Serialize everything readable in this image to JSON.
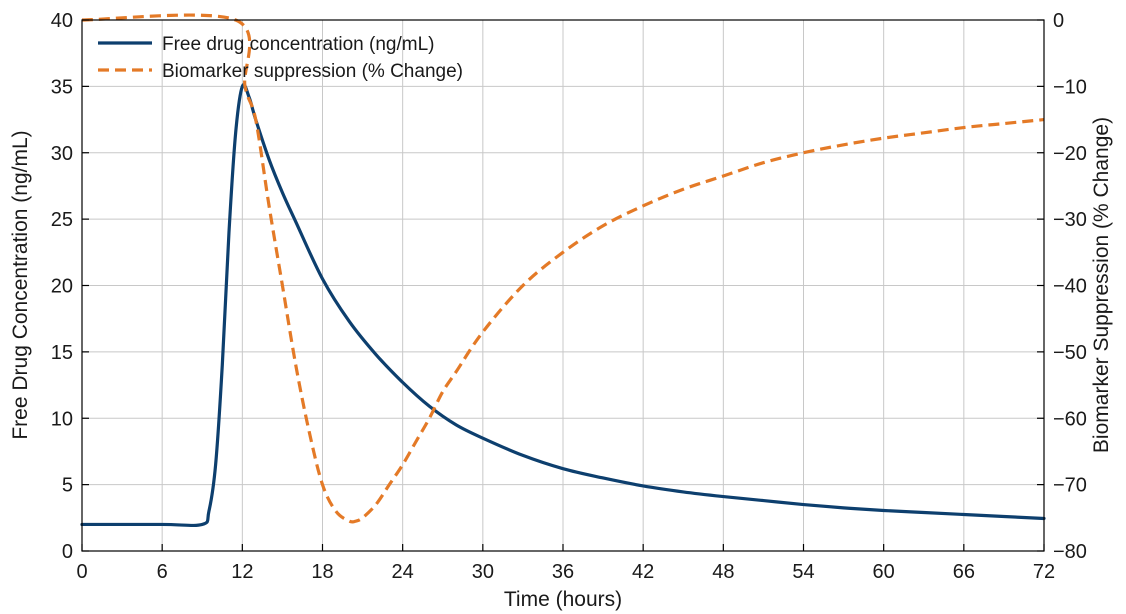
{
  "chart_data": {
    "type": "line",
    "xlabel": "Time (hours)",
    "ylabel_left": "Free Drug Concentration (ng/mL)",
    "ylabel_right": "Biomarker Suppression (% Change)",
    "xlim": [
      0,
      72
    ],
    "ylim_left": [
      0,
      40
    ],
    "ylim_right": [
      -80,
      0
    ],
    "x_ticks": [
      "0",
      "6",
      "12",
      "18",
      "24",
      "30",
      "36",
      "42",
      "48",
      "54",
      "60",
      "66",
      "72"
    ],
    "y_left_ticks": [
      "0",
      "5",
      "10",
      "15",
      "20",
      "25",
      "30",
      "35",
      "40"
    ],
    "y_right_ticks": [
      "-80",
      "-70",
      "-60",
      "-50",
      "-40",
      "-30",
      "-20",
      "-10",
      "0"
    ],
    "grid": true,
    "legend_position": "top-left",
    "series": [
      {
        "name": "Free drug concentration (ng/mL)",
        "axis": "left",
        "color": "#0d3f6e",
        "style": "solid",
        "x": [
          0,
          6,
          9,
          9.5,
          10,
          10.5,
          11,
          11.5,
          12,
          12.5,
          13,
          14,
          15,
          16,
          18,
          20,
          22,
          24,
          26,
          28,
          30,
          33,
          36,
          39,
          42,
          45,
          48,
          51,
          54,
          57,
          60,
          63,
          66,
          69,
          72
        ],
        "values": [
          2,
          2,
          2,
          3,
          6.5,
          14,
          24,
          31.5,
          35,
          34.2,
          32.5,
          29.5,
          27,
          24.8,
          20.5,
          17.3,
          14.8,
          12.7,
          10.9,
          9.5,
          8.5,
          7.2,
          6.2,
          5.5,
          4.9,
          4.45,
          4.1,
          3.8,
          3.5,
          3.25,
          3.05,
          2.9,
          2.75,
          2.6,
          2.45
        ]
      },
      {
        "name": "Biomarker suppression (% Change)",
        "axis": "right",
        "color": "#e47a27",
        "style": "dashed",
        "x": [
          0,
          11.5,
          12.2,
          13,
          14,
          15,
          16,
          17,
          18,
          19,
          20,
          20.5,
          21,
          22,
          23,
          24,
          25,
          26,
          27,
          28,
          30,
          33,
          36,
          39,
          42,
          45,
          48,
          51,
          54,
          57,
          60,
          63,
          66,
          69,
          72
        ],
        "values": [
          0,
          0,
          -10,
          -15,
          -28,
          -40,
          -52,
          -62,
          -70,
          -74,
          -75.5,
          -75.5,
          -75,
          -73,
          -70,
          -67,
          -63.5,
          -60,
          -56,
          -53,
          -47,
          -40,
          -35,
          -31,
          -28,
          -25.5,
          -23.5,
          -21.5,
          -20,
          -18.8,
          -17.8,
          -17,
          -16.2,
          -15.6,
          -15
        ]
      }
    ]
  }
}
